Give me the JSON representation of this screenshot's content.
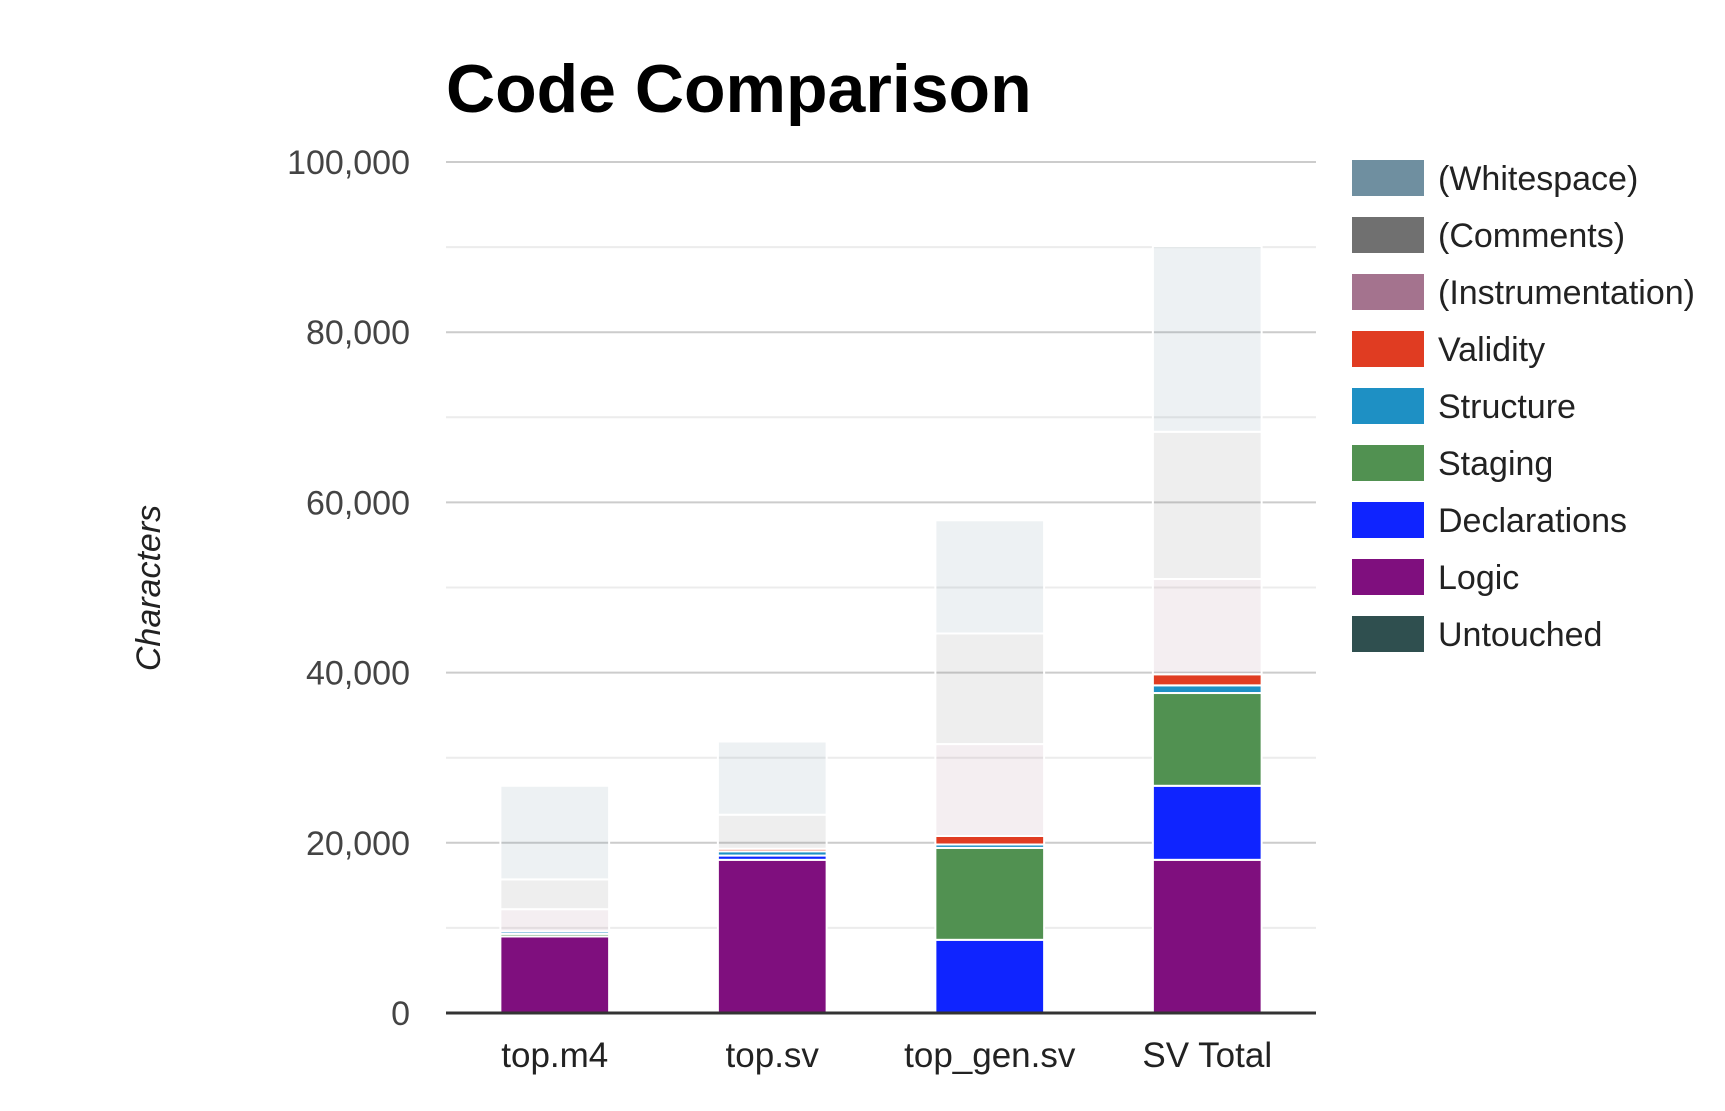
{
  "chart_data": {
    "type": "bar",
    "stacked": true,
    "title": "Code Comparison",
    "ylabel": "Characters",
    "xlabel": "",
    "ylim": [
      0,
      100000
    ],
    "yticks": [
      0,
      20000,
      40000,
      60000,
      80000,
      100000
    ],
    "ytick_labels": [
      "0",
      "20,000",
      "40,000",
      "60,000",
      "80,000",
      "100,000"
    ],
    "categories": [
      "top.m4",
      "top.sv",
      "top_gen.sv",
      "SV Total"
    ],
    "legend_position": "right",
    "series": [
      {
        "name": "Untouched",
        "color": "#2f4f4f",
        "values": [
          0,
          0,
          0,
          0
        ]
      },
      {
        "name": "Logic",
        "color": "#7f0f7e",
        "values": [
          9000,
          18000,
          0,
          18000
        ]
      },
      {
        "name": "Declarations",
        "color": "#0f24ff",
        "values": [
          0,
          500,
          8600,
          8700
        ]
      },
      {
        "name": "Staging",
        "color": "#519151",
        "values": [
          300,
          0,
          10800,
          10900
        ]
      },
      {
        "name": "Structure",
        "color": "#1e90c4",
        "values": [
          300,
          500,
          400,
          900
        ]
      },
      {
        "name": "Validity",
        "color": "#e03c22",
        "values": [
          0,
          300,
          1000,
          1300
        ]
      },
      {
        "name": "(Instrumentation)",
        "color": "#a4738e",
        "values": [
          2600,
          0,
          10800,
          11200
        ]
      },
      {
        "name": "(Comments)",
        "color": "#707070",
        "values": [
          3500,
          4000,
          13000,
          17300
        ]
      },
      {
        "name": "(Whitespace)",
        "color": "#6f8fa0",
        "values": [
          11000,
          8600,
          13300,
          21800
        ]
      }
    ],
    "legend_order": [
      "(Whitespace)",
      "(Comments)",
      "(Instrumentation)",
      "Validity",
      "Structure",
      "Staging",
      "Declarations",
      "Logic",
      "Untouched"
    ],
    "faded_series": [
      "(Instrumentation)",
      "(Comments)",
      "(Whitespace)"
    ],
    "grid": true
  }
}
